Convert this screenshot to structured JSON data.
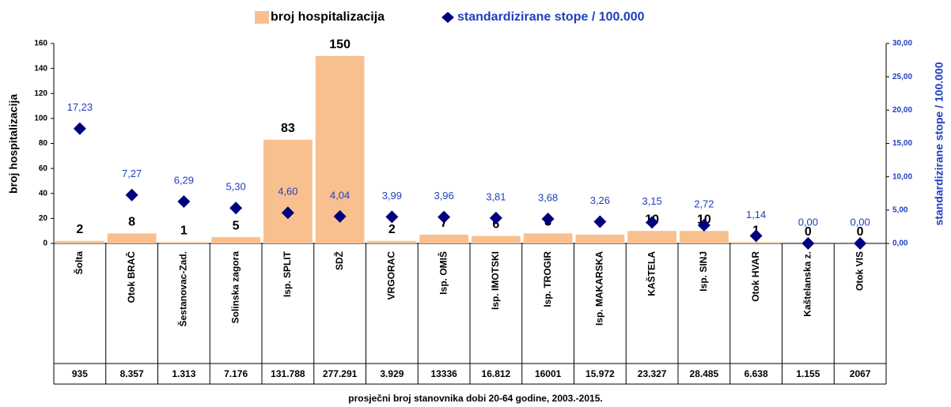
{
  "chart_data": {
    "type": "bar",
    "categories": [
      "Šolta",
      "Otok BRAČ",
      "Šestanovac-Zad.",
      "Solinska zagora",
      "Isp. SPLIT",
      "SDŽ",
      "VRGORAC",
      "Isp. OMIŠ",
      "Isp. IMOTSKI",
      "Isp. TROGIR",
      "Isp. MAKARSKA",
      "KAŠTELA",
      "Isp. SINJ",
      "Otok HVAR",
      "Kaštelanska z.",
      "Otok VIS"
    ],
    "series": [
      {
        "name": "broj hospitalizacija",
        "type": "bar",
        "color": "#f9c08f",
        "values": [
          2,
          8,
          1,
          5,
          83,
          150,
          2,
          7,
          6,
          8,
          7,
          10,
          10,
          1,
          0,
          0
        ]
      },
      {
        "name": "standardizirane stope / 100.000",
        "type": "scatter",
        "axis": "y2",
        "color": "#00007f",
        "values": [
          17.23,
          7.27,
          6.29,
          5.3,
          4.6,
          4.04,
          3.99,
          3.96,
          3.81,
          3.68,
          3.26,
          3.15,
          2.72,
          1.14,
          0.0,
          0.0
        ],
        "value_labels": [
          "17,23",
          "7,27",
          "6,29",
          "5,30",
          "4,60",
          "4,04",
          "3,99",
          "3,96",
          "3,81",
          "3,68",
          "3,26",
          "3,15",
          "2,72",
          "1,14",
          "0,00",
          "0,00"
        ]
      }
    ],
    "table_row": [
      "935",
      "8.357",
      "1.313",
      "7.176",
      "131.788",
      "277.291",
      "3.929",
      "13336",
      "16.812",
      "16001",
      "15.972",
      "23.327",
      "28.485",
      "6.638",
      "1.155",
      "2067"
    ],
    "ylabel": "broj hospitalizacija",
    "y2label": "standardizirane stope / 100.000",
    "xlabel": "prosječni broj stanovnika dobi 20-64 godine, 2003.-2015.",
    "ylim": [
      0,
      160
    ],
    "yticks": [
      0,
      20,
      40,
      60,
      80,
      100,
      120,
      140,
      160
    ],
    "y2lim": [
      0,
      30
    ],
    "y2ticks": [
      {
        "value": 0,
        "label": "0,00"
      },
      {
        "value": 5,
        "label": "5,00"
      },
      {
        "value": 10,
        "label": "10,00"
      },
      {
        "value": 15,
        "label": "15,00"
      },
      {
        "value": 20,
        "label": "20,00"
      },
      {
        "value": 25,
        "label": "25,00"
      },
      {
        "value": 30,
        "label": "30,00"
      }
    ],
    "grid": false
  }
}
